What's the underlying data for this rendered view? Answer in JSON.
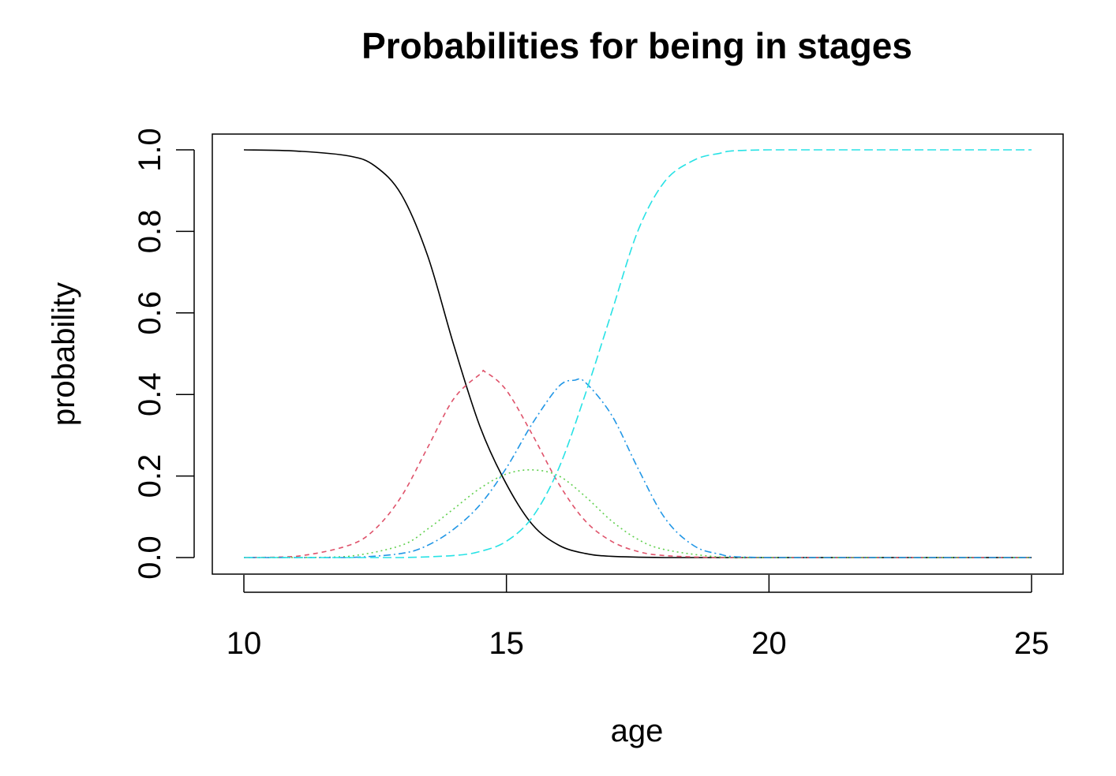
{
  "chart_data": {
    "type": "line",
    "title": "Probabilities for being in stages",
    "xlabel": "age",
    "ylabel": "probability",
    "xlim": [
      10,
      25
    ],
    "ylim": [
      0,
      1
    ],
    "xticks": [
      10,
      15,
      20,
      25
    ],
    "xtick_labels": [
      "10",
      "15",
      "20",
      "25"
    ],
    "yticks": [
      0,
      0.2,
      0.4,
      0.6,
      0.8,
      1
    ],
    "ytick_labels": [
      "0.0",
      "0.2",
      "0.4",
      "0.6",
      "0.8",
      "1.0"
    ],
    "grid": false,
    "legend": "none",
    "series": [
      {
        "color": "#000000",
        "linestyle": "solid",
        "x": [
          10,
          11,
          12,
          12.5,
          13,
          13.5,
          14,
          14.5,
          15,
          15.5,
          16,
          16.5,
          17,
          18,
          19,
          20,
          25
        ],
        "y": [
          1.0,
          0.997,
          0.985,
          0.96,
          0.89,
          0.74,
          0.52,
          0.32,
          0.18,
          0.08,
          0.03,
          0.01,
          0.003,
          0.0,
          0.0,
          0.0,
          0.0
        ]
      },
      {
        "color": "#DF536B",
        "linestyle": "dashed",
        "x": [
          10,
          11,
          12,
          12.5,
          13,
          13.5,
          14,
          14.5,
          14.6,
          15,
          15.5,
          16,
          16.5,
          17,
          17.5,
          18,
          19,
          20,
          25
        ],
        "y": [
          0.0,
          0.003,
          0.03,
          0.07,
          0.15,
          0.27,
          0.39,
          0.45,
          0.455,
          0.41,
          0.3,
          0.18,
          0.09,
          0.04,
          0.015,
          0.005,
          0.0,
          0.0,
          0.0
        ]
      },
      {
        "color": "#61D04F",
        "linestyle": "dotted",
        "x": [
          10,
          11,
          12,
          13,
          13.5,
          14,
          14.5,
          15,
          15.5,
          16,
          16.5,
          17,
          17.5,
          18,
          19,
          20,
          25
        ],
        "y": [
          0.0,
          0.0,
          0.003,
          0.03,
          0.07,
          0.12,
          0.17,
          0.205,
          0.215,
          0.2,
          0.15,
          0.09,
          0.045,
          0.02,
          0.002,
          0.0,
          0.0
        ]
      },
      {
        "color": "#2297E6",
        "linestyle": "dotdash",
        "x": [
          10,
          11,
          12,
          13,
          13.5,
          14,
          14.5,
          15,
          15.5,
          16,
          16.3,
          16.5,
          17,
          17.5,
          18,
          18.5,
          19,
          20,
          25
        ],
        "y": [
          0.0,
          0.0,
          0.0,
          0.01,
          0.03,
          0.07,
          0.13,
          0.22,
          0.33,
          0.42,
          0.435,
          0.43,
          0.35,
          0.22,
          0.1,
          0.035,
          0.01,
          0.0,
          0.0
        ]
      },
      {
        "color": "#28E2E5",
        "linestyle": "longdash",
        "x": [
          10,
          12,
          13,
          14,
          14.5,
          15,
          15.5,
          16,
          16.5,
          17,
          17.5,
          18,
          18.5,
          19,
          20,
          25
        ],
        "y": [
          0.0,
          0.0,
          0.0,
          0.005,
          0.015,
          0.04,
          0.1,
          0.22,
          0.4,
          0.6,
          0.8,
          0.92,
          0.97,
          0.99,
          1.0,
          1.0
        ]
      }
    ]
  }
}
